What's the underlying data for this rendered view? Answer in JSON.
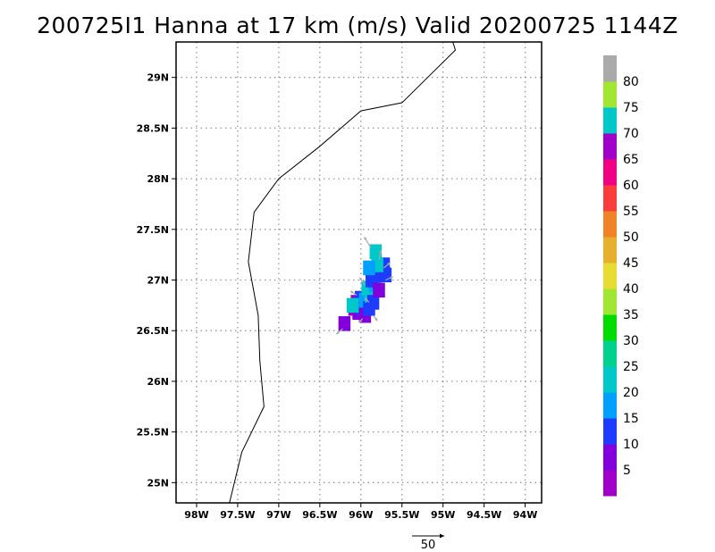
{
  "title": "200725I1 Hanna at 17 km (m/s) Valid 20200725 1144Z",
  "chart_data": {
    "type": "heatmap",
    "title": "200725I1 Hanna at 17 km (m/s) Valid 20200725 1144Z",
    "xlim": [
      -98.25,
      -93.8
    ],
    "ylim": [
      24.8,
      29.35
    ],
    "x_ticks": [
      {
        "value": -98.0,
        "label": "98W"
      },
      {
        "value": -97.5,
        "label": "97.5W"
      },
      {
        "value": -97.0,
        "label": "97W"
      },
      {
        "value": -96.5,
        "label": "96.5W"
      },
      {
        "value": -96.0,
        "label": "96W"
      },
      {
        "value": -95.5,
        "label": "95.5W"
      },
      {
        "value": -95.0,
        "label": "95W"
      },
      {
        "value": -94.5,
        "label": "94.5W"
      },
      {
        "value": -94.0,
        "label": "94W"
      }
    ],
    "y_ticks": [
      {
        "value": 25.0,
        "label": "25N"
      },
      {
        "value": 25.5,
        "label": "25.5N"
      },
      {
        "value": 26.0,
        "label": "26N"
      },
      {
        "value": 26.5,
        "label": "26.5N"
      },
      {
        "value": 27.0,
        "label": "27N"
      },
      {
        "value": 27.5,
        "label": "27.5N"
      },
      {
        "value": 28.0,
        "label": "28N"
      },
      {
        "value": 28.5,
        "label": "28.5N"
      },
      {
        "value": 29.0,
        "label": "29N"
      }
    ],
    "grid": true,
    "coastline": [
      [
        -97.6,
        24.8
      ],
      [
        -97.45,
        25.3
      ],
      [
        -97.18,
        25.75
      ],
      [
        -97.23,
        26.2
      ],
      [
        -97.25,
        26.65
      ],
      [
        -97.37,
        27.18
      ],
      [
        -97.3,
        27.67
      ],
      [
        -97.0,
        28.0
      ],
      [
        -96.5,
        28.32
      ],
      [
        -96.0,
        28.67
      ],
      [
        -95.5,
        28.75
      ],
      [
        -94.85,
        29.27
      ],
      [
        -94.9,
        29.4
      ]
    ],
    "wind_cells": [
      {
        "lon": -96.08,
        "lat": 26.72,
        "speed": 68
      },
      {
        "lon": -96.05,
        "lat": 26.78,
        "speed": 65
      },
      {
        "lon": -96.03,
        "lat": 26.68,
        "speed": 8
      },
      {
        "lon": -95.98,
        "lat": 26.72,
        "speed": 10
      },
      {
        "lon": -95.95,
        "lat": 26.65,
        "speed": 8
      },
      {
        "lon": -96.0,
        "lat": 26.82,
        "speed": 12
      },
      {
        "lon": -95.95,
        "lat": 26.8,
        "speed": 18
      },
      {
        "lon": -95.9,
        "lat": 26.72,
        "speed": 12
      },
      {
        "lon": -95.88,
        "lat": 26.85,
        "speed": 20
      },
      {
        "lon": -95.92,
        "lat": 26.92,
        "speed": 22
      },
      {
        "lon": -95.85,
        "lat": 26.78,
        "speed": 10
      },
      {
        "lon": -95.83,
        "lat": 26.95,
        "speed": 15
      },
      {
        "lon": -95.87,
        "lat": 27.0,
        "speed": 13
      },
      {
        "lon": -95.8,
        "lat": 27.05,
        "speed": 11
      },
      {
        "lon": -95.78,
        "lat": 26.9,
        "speed": 9
      },
      {
        "lon": -95.75,
        "lat": 27.1,
        "speed": 14
      },
      {
        "lon": -95.72,
        "lat": 27.15,
        "speed": 12
      },
      {
        "lon": -95.7,
        "lat": 27.05,
        "speed": 11
      },
      {
        "lon": -95.8,
        "lat": 27.15,
        "speed": 20
      },
      {
        "lon": -95.82,
        "lat": 27.28,
        "speed": 22
      },
      {
        "lon": -95.9,
        "lat": 27.12,
        "speed": 18
      },
      {
        "lon": -96.1,
        "lat": 26.75,
        "speed": 70
      },
      {
        "lon": -96.2,
        "lat": 26.57,
        "speed": 5
      }
    ],
    "wind_vectors": [
      {
        "lon": -95.88,
        "lat": 27.32,
        "u": -6,
        "v": 10
      },
      {
        "lon": -95.78,
        "lat": 27.2,
        "u": 2,
        "v": 9
      },
      {
        "lon": -95.72,
        "lat": 27.12,
        "u": 6,
        "v": 5
      },
      {
        "lon": -95.7,
        "lat": 27.0,
        "u": 7,
        "v": 3
      },
      {
        "lon": -95.95,
        "lat": 26.95,
        "u": -5,
        "v": 7
      },
      {
        "lon": -96.05,
        "lat": 26.85,
        "u": -6,
        "v": 4
      },
      {
        "lon": -95.85,
        "lat": 26.65,
        "u": 4,
        "v": -5
      },
      {
        "lon": -95.98,
        "lat": 26.62,
        "u": -3,
        "v": -4
      },
      {
        "lon": -96.22,
        "lat": 26.52,
        "u": -6,
        "v": -5
      },
      {
        "lon": -95.9,
        "lat": 26.78,
        "u": -4,
        "v": 4
      }
    ],
    "colorbar": {
      "bins": [
        {
          "color": "#a000c8"
        },
        {
          "color": "#8200dc"
        },
        {
          "color": "#1e3cff"
        },
        {
          "color": "#00a0ff"
        },
        {
          "color": "#00c8c8"
        },
        {
          "color": "#00d28c"
        },
        {
          "color": "#00dc00"
        },
        {
          "color": "#a0e632"
        },
        {
          "color": "#e6dc32"
        },
        {
          "color": "#e6af2d"
        },
        {
          "color": "#f08228"
        },
        {
          "color": "#fa3c3c"
        },
        {
          "color": "#f00082"
        },
        {
          "color": "#a000c8"
        },
        {
          "color": "#00c8c8"
        },
        {
          "color": "#a0e632"
        },
        {
          "color": "#aaaaaa"
        }
      ],
      "labels": [
        "5",
        "10",
        "15",
        "20",
        "25",
        "30",
        "35",
        "40",
        "45",
        "50",
        "55",
        "60",
        "65",
        "70",
        "75",
        "80"
      ]
    },
    "reference_vector": {
      "label": "50",
      "color": "#000000"
    }
  },
  "colors": {
    "grid": "#999999",
    "frame": "#000000",
    "coastline": "#000000",
    "vector": "#aaaaaa"
  }
}
